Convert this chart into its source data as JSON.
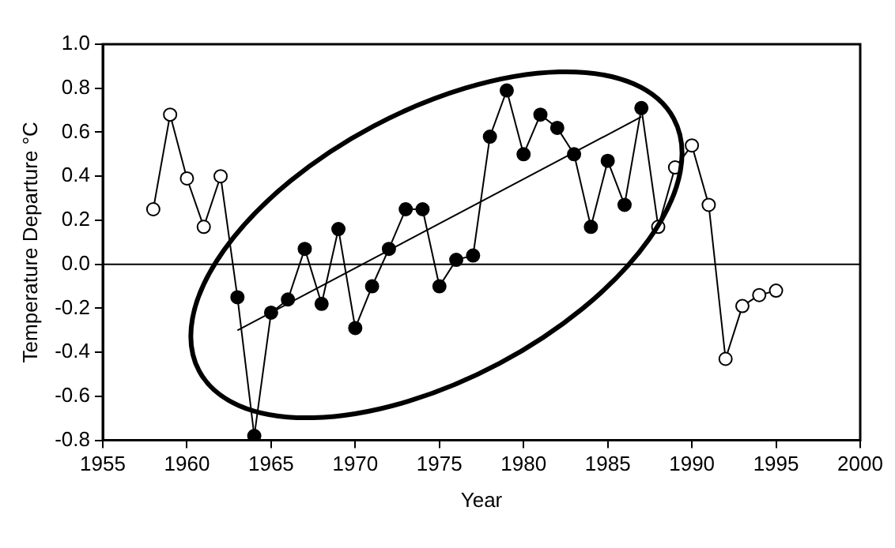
{
  "chart_data": {
    "type": "line",
    "xlabel": "Year",
    "ylabel": "Temperature Departure °C",
    "xlim": [
      1955,
      2000
    ],
    "xticks": [
      1955,
      1960,
      1965,
      1970,
      1975,
      1980,
      1985,
      1990,
      1995,
      2000
    ],
    "ylim": [
      -0.8,
      1.0
    ],
    "yticks": [
      {
        "value": -0.8,
        "label": "-0.8"
      },
      {
        "value": -0.6,
        "label": "-0.6"
      },
      {
        "value": -0.4,
        "label": "-0.4"
      },
      {
        "value": -0.2,
        "label": "-0.2"
      },
      {
        "value": 0,
        "label": "0.0"
      },
      {
        "value": 0.2,
        "label": "0.2"
      },
      {
        "value": 0.4,
        "label": "0.4"
      },
      {
        "value": 0.6,
        "label": "0.6"
      },
      {
        "value": 0.8,
        "label": "0.8"
      },
      {
        "value": 1.0,
        "label": "1.0"
      }
    ],
    "grid": false,
    "legend": false,
    "marker": "circle",
    "line_style": "solid",
    "ref_lines": [
      {
        "axis": "y",
        "value": 0,
        "color": "#000000"
      }
    ],
    "series": [
      {
        "color": "#000000",
        "x": [
          1958,
          1959,
          1960,
          1961,
          1962,
          1963,
          1964,
          1965,
          1966,
          1967,
          1968,
          1969,
          1970,
          1971,
          1972,
          1973,
          1974,
          1975,
          1976,
          1977,
          1978,
          1979,
          1980,
          1981,
          1982,
          1983,
          1984,
          1985,
          1986,
          1987,
          1988,
          1989,
          1990,
          1991,
          1992,
          1993,
          1994,
          1995
        ],
        "values": [
          0.25,
          0.68,
          0.39,
          0.17,
          0.4,
          -0.15,
          -0.78,
          -0.22,
          -0.16,
          0.07,
          -0.18,
          0.16,
          -0.29,
          -0.1,
          0.07,
          0.25,
          0.25,
          -0.1,
          0.02,
          0.04,
          0.58,
          0.79,
          0.5,
          0.68,
          0.62,
          0.5,
          0.17,
          0.47,
          0.27,
          0.71,
          0.17,
          0.44,
          0.54,
          0.27,
          -0.43,
          -0.19,
          -0.14,
          -0.12
        ],
        "colors": [
          "#ffffff",
          "#ffffff",
          "#ffffff",
          "#ffffff",
          "#ffffff",
          "#000000",
          "#000000",
          "#000000",
          "#000000",
          "#000000",
          "#000000",
          "#000000",
          "#000000",
          "#000000",
          "#000000",
          "#000000",
          "#000000",
          "#000000",
          "#000000",
          "#000000",
          "#000000",
          "#000000",
          "#000000",
          "#000000",
          "#000000",
          "#000000",
          "#000000",
          "#000000",
          "#000000",
          "#000000",
          "#ffffff",
          "#ffffff",
          "#ffffff",
          "#ffffff",
          "#ffffff",
          "#ffffff",
          "#ffffff",
          "#ffffff"
        ]
      },
      {
        "color": "#000000",
        "marker": "none",
        "x": [
          1963,
          1987
        ],
        "values": [
          -0.3,
          0.67
        ]
      }
    ]
  }
}
